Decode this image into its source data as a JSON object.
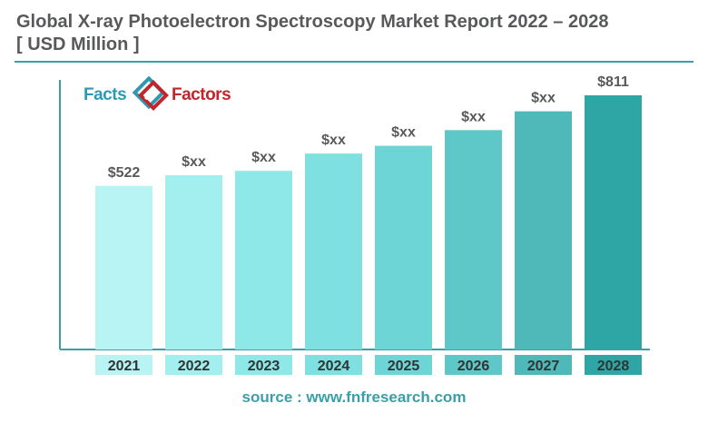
{
  "header": {
    "title_line1": "Global X-ray Photoelectron Spectroscopy Market Report 2022 – 2028",
    "title_line2": "[ USD Million  ]"
  },
  "logo": {
    "word_left": "Facts",
    "word_right": "Factors",
    "symbol": "&"
  },
  "footer": {
    "source": "source : www.fnfresearch.com"
  },
  "colors": {
    "bars": [
      "#b9f4f4",
      "#a3efef",
      "#8ee8e8",
      "#7ee0e0",
      "#6dd5d5",
      "#5ec7c7",
      "#4fb8b8",
      "#2fa6a6"
    ],
    "axis": "#3a9fa8",
    "label_text": "#58595b"
  },
  "chart_data": {
    "type": "bar",
    "categories": [
      "2021",
      "2022",
      "2023",
      "2024",
      "2025",
      "2026",
      "2027",
      "2028"
    ],
    "values": [
      522,
      556,
      570,
      625,
      650,
      700,
      760,
      811
    ],
    "data_labels": [
      "$522",
      "$xx",
      "$xx",
      "$xx",
      "$xx",
      "$xx",
      "$xx",
      "$811"
    ],
    "title": "Global X-ray Photoelectron Spectroscopy Market Report 2022 – 2028",
    "ylabel": "[ USD Million  ]",
    "xlabel": "",
    "ylim": [
      0,
      980
    ],
    "grid": false,
    "legend": "none"
  }
}
